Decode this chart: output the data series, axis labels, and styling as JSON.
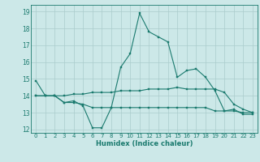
{
  "xlabel": "Humidex (Indice chaleur)",
  "x": [
    0,
    1,
    2,
    3,
    4,
    5,
    6,
    7,
    8,
    9,
    10,
    11,
    12,
    13,
    14,
    15,
    16,
    17,
    18,
    19,
    20,
    21,
    22,
    23
  ],
  "line1": [
    14.9,
    14.0,
    14.0,
    13.6,
    13.7,
    13.4,
    12.1,
    12.1,
    13.3,
    15.7,
    16.5,
    18.9,
    17.8,
    17.5,
    17.2,
    15.1,
    15.5,
    15.6,
    15.1,
    14.3,
    13.1,
    13.2,
    12.9,
    12.9
  ],
  "line2": [
    14.0,
    14.0,
    14.0,
    14.0,
    14.1,
    14.1,
    14.2,
    14.2,
    14.2,
    14.3,
    14.3,
    14.3,
    14.4,
    14.4,
    14.4,
    14.5,
    14.4,
    14.4,
    14.4,
    14.4,
    14.2,
    13.5,
    13.2,
    13.0
  ],
  "line3": [
    14.0,
    14.0,
    14.0,
    13.6,
    13.6,
    13.5,
    13.3,
    13.3,
    13.3,
    13.3,
    13.3,
    13.3,
    13.3,
    13.3,
    13.3,
    13.3,
    13.3,
    13.3,
    13.3,
    13.1,
    13.1,
    13.1,
    13.0,
    13.0
  ],
  "line_color": "#1a7a6e",
  "bg_color": "#cce8e8",
  "grid_color": "#aacccc",
  "ylim": [
    11.8,
    19.4
  ],
  "yticks": [
    12,
    13,
    14,
    15,
    16,
    17,
    18,
    19
  ],
  "xlim": [
    -0.5,
    23.5
  ],
  "xtick_fontsize": 5.0,
  "ytick_fontsize": 5.5,
  "xlabel_fontsize": 6.0,
  "marker_size": 1.8,
  "line_width": 0.8
}
